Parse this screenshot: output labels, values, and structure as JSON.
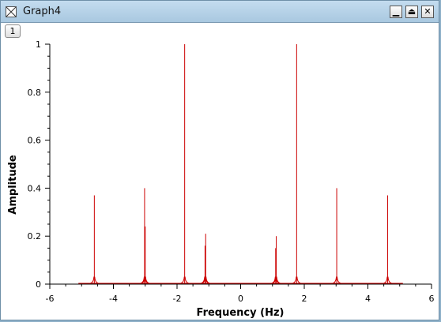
{
  "window": {
    "title": "Graph4",
    "layer_label": "1"
  },
  "controls": {
    "minimize_icon": "minimize-icon",
    "maximize_icon": "maximize-icon",
    "close_icon": "close-icon"
  },
  "colors": {
    "series": "#cc0000",
    "titlebar": "#b7d2e8"
  },
  "chart_data": {
    "type": "line",
    "xlabel": "Frequency (Hz)",
    "ylabel": "Amplitude",
    "xlim": [
      -6,
      6
    ],
    "ylim": [
      0,
      1
    ],
    "xticks": [
      "-6",
      "-4",
      "-2",
      "0",
      "2",
      "4",
      "6"
    ],
    "yticks": [
      "0",
      "0.2",
      "0.4",
      "0.6",
      "0.8",
      "1"
    ],
    "grid": false,
    "legend": "none",
    "baseline_range": [
      -5.1,
      5.1
    ],
    "peaks": [
      {
        "x": -4.6,
        "y": 0.37
      },
      {
        "x": -3.02,
        "y": 0.4
      },
      {
        "x": -3.0,
        "y": 0.24
      },
      {
        "x": -1.76,
        "y": 1.0
      },
      {
        "x": -1.1,
        "y": 0.21
      },
      {
        "x": -1.12,
        "y": 0.16
      },
      {
        "x": 1.12,
        "y": 0.2
      },
      {
        "x": 1.1,
        "y": 0.15
      },
      {
        "x": 1.76,
        "y": 1.0
      },
      {
        "x": 3.02,
        "y": 0.4
      },
      {
        "x": 4.62,
        "y": 0.37
      }
    ]
  }
}
